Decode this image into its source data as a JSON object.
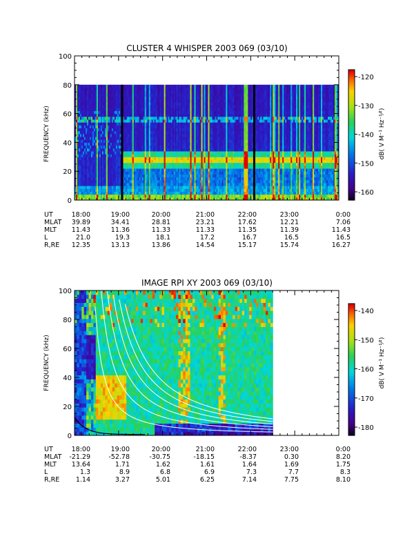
{
  "panels": [
    {
      "title": "CLUSTER 4 WHISPER 2003 069 (03/10)",
      "ylabel": "FREQUENCY (kHz)",
      "yticks": [
        "0",
        "20",
        "40",
        "60",
        "80",
        "100"
      ],
      "colorbar_label": "dB( V M⁻¹ Hz⁻¹⁄²)",
      "colorbar_ticks": [
        "-120",
        "-130",
        "-140",
        "-150",
        "-160"
      ],
      "ephemeris_labels": [
        "UT",
        "MLAT",
        "MLT",
        "L",
        "R,RE"
      ],
      "ephemeris": [
        [
          "18:00",
          "19:00",
          "20:00",
          "21:00",
          "22:00",
          "23:00",
          "0:00"
        ],
        [
          "39.89",
          "34.41",
          "28.81",
          "23.21",
          "17.62",
          "12.21",
          "7.06"
        ],
        [
          "11.43",
          "11.36",
          "11.33",
          "11.33",
          "11.35",
          "11.39",
          "11.43"
        ],
        [
          "21.0",
          "19.3",
          "18.1",
          "17.2",
          "16.7",
          "16.5",
          "16.5"
        ],
        [
          "12.35",
          "13.13",
          "13.86",
          "14.54",
          "15.17",
          "15.74",
          "16.27"
        ]
      ]
    },
    {
      "title": "IMAGE RPI XY 2003 069 (03/10)",
      "ylabel": "FREQUENCY (kHz)",
      "yticks": [
        "0",
        "20",
        "40",
        "60",
        "80",
        "100"
      ],
      "colorbar_label": "dB( V M⁻¹ Hz⁻¹⁄²)",
      "colorbar_ticks": [
        "-140",
        "-150",
        "-160",
        "-170",
        "-180"
      ],
      "ephemeris_labels": [
        "UT",
        "MLAT",
        "MLT",
        "L",
        "R,RE"
      ],
      "ephemeris": [
        [
          "18:00",
          "19:00",
          "20:00",
          "21:00",
          "22:00",
          "23:00",
          "0:00"
        ],
        [
          "-21.29",
          "-52.78",
          "-30.75",
          "-18.15",
          "-8.37",
          "0.30",
          "8.20"
        ],
        [
          "13.64",
          "1.71",
          "1.62",
          "1.61",
          "1.64",
          "1.69",
          "1.75"
        ],
        [
          "1.3",
          "8.9",
          "6.8",
          "6.9",
          "7.3",
          "7.7",
          "8.3"
        ],
        [
          "1.14",
          "3.27",
          "5.01",
          "6.25",
          "7.14",
          "7.75",
          "8.10"
        ]
      ]
    }
  ],
  "chart_data": [
    {
      "type": "heatmap",
      "title": "CLUSTER 4 WHISPER 2003 069 (03/10)",
      "xlabel": "UT",
      "ylabel": "FREQUENCY (kHz)",
      "xlim": [
        "18:00",
        "0:00"
      ],
      "ylim": [
        0,
        100
      ],
      "zlabel": "dB( V M⁻¹ Hz⁻¹⁄²)",
      "zlim": [
        -165,
        -117
      ],
      "colormap": "rainbow",
      "data_fmax_khz": 80,
      "features": {
        "emission_band_khz": [
          22,
          34
        ],
        "intense_line_khz": 28,
        "emission_band_start_ut": "19:05",
        "constant_line_khz": 56,
        "data_gaps_ut": [
          "19:05",
          "22:05"
        ]
      }
    },
    {
      "type": "heatmap",
      "title": "IMAGE RPI XY 2003 069 (03/10)",
      "xlabel": "UT",
      "ylabel": "FREQUENCY (kHz)",
      "xlim": [
        "18:00",
        "0:00"
      ],
      "ylim": [
        0,
        100
      ],
      "zlabel": "dB( V M⁻¹ Hz⁻¹⁄²)",
      "zlim": [
        -185,
        -135
      ],
      "colormap": "rainbow",
      "data_end_ut": "22:30",
      "overlay": "white plasma-frequency harmonic curves decreasing with time",
      "features": {
        "low_noise_band_khz": [
          0,
          10
        ],
        "intense_columns_ut": [
          "19:30",
          "20:30",
          "21:20"
        ]
      }
    }
  ],
  "colors": {
    "background": "#ffffff",
    "frame": "#000000",
    "overlay_curve": "#ffffff"
  }
}
